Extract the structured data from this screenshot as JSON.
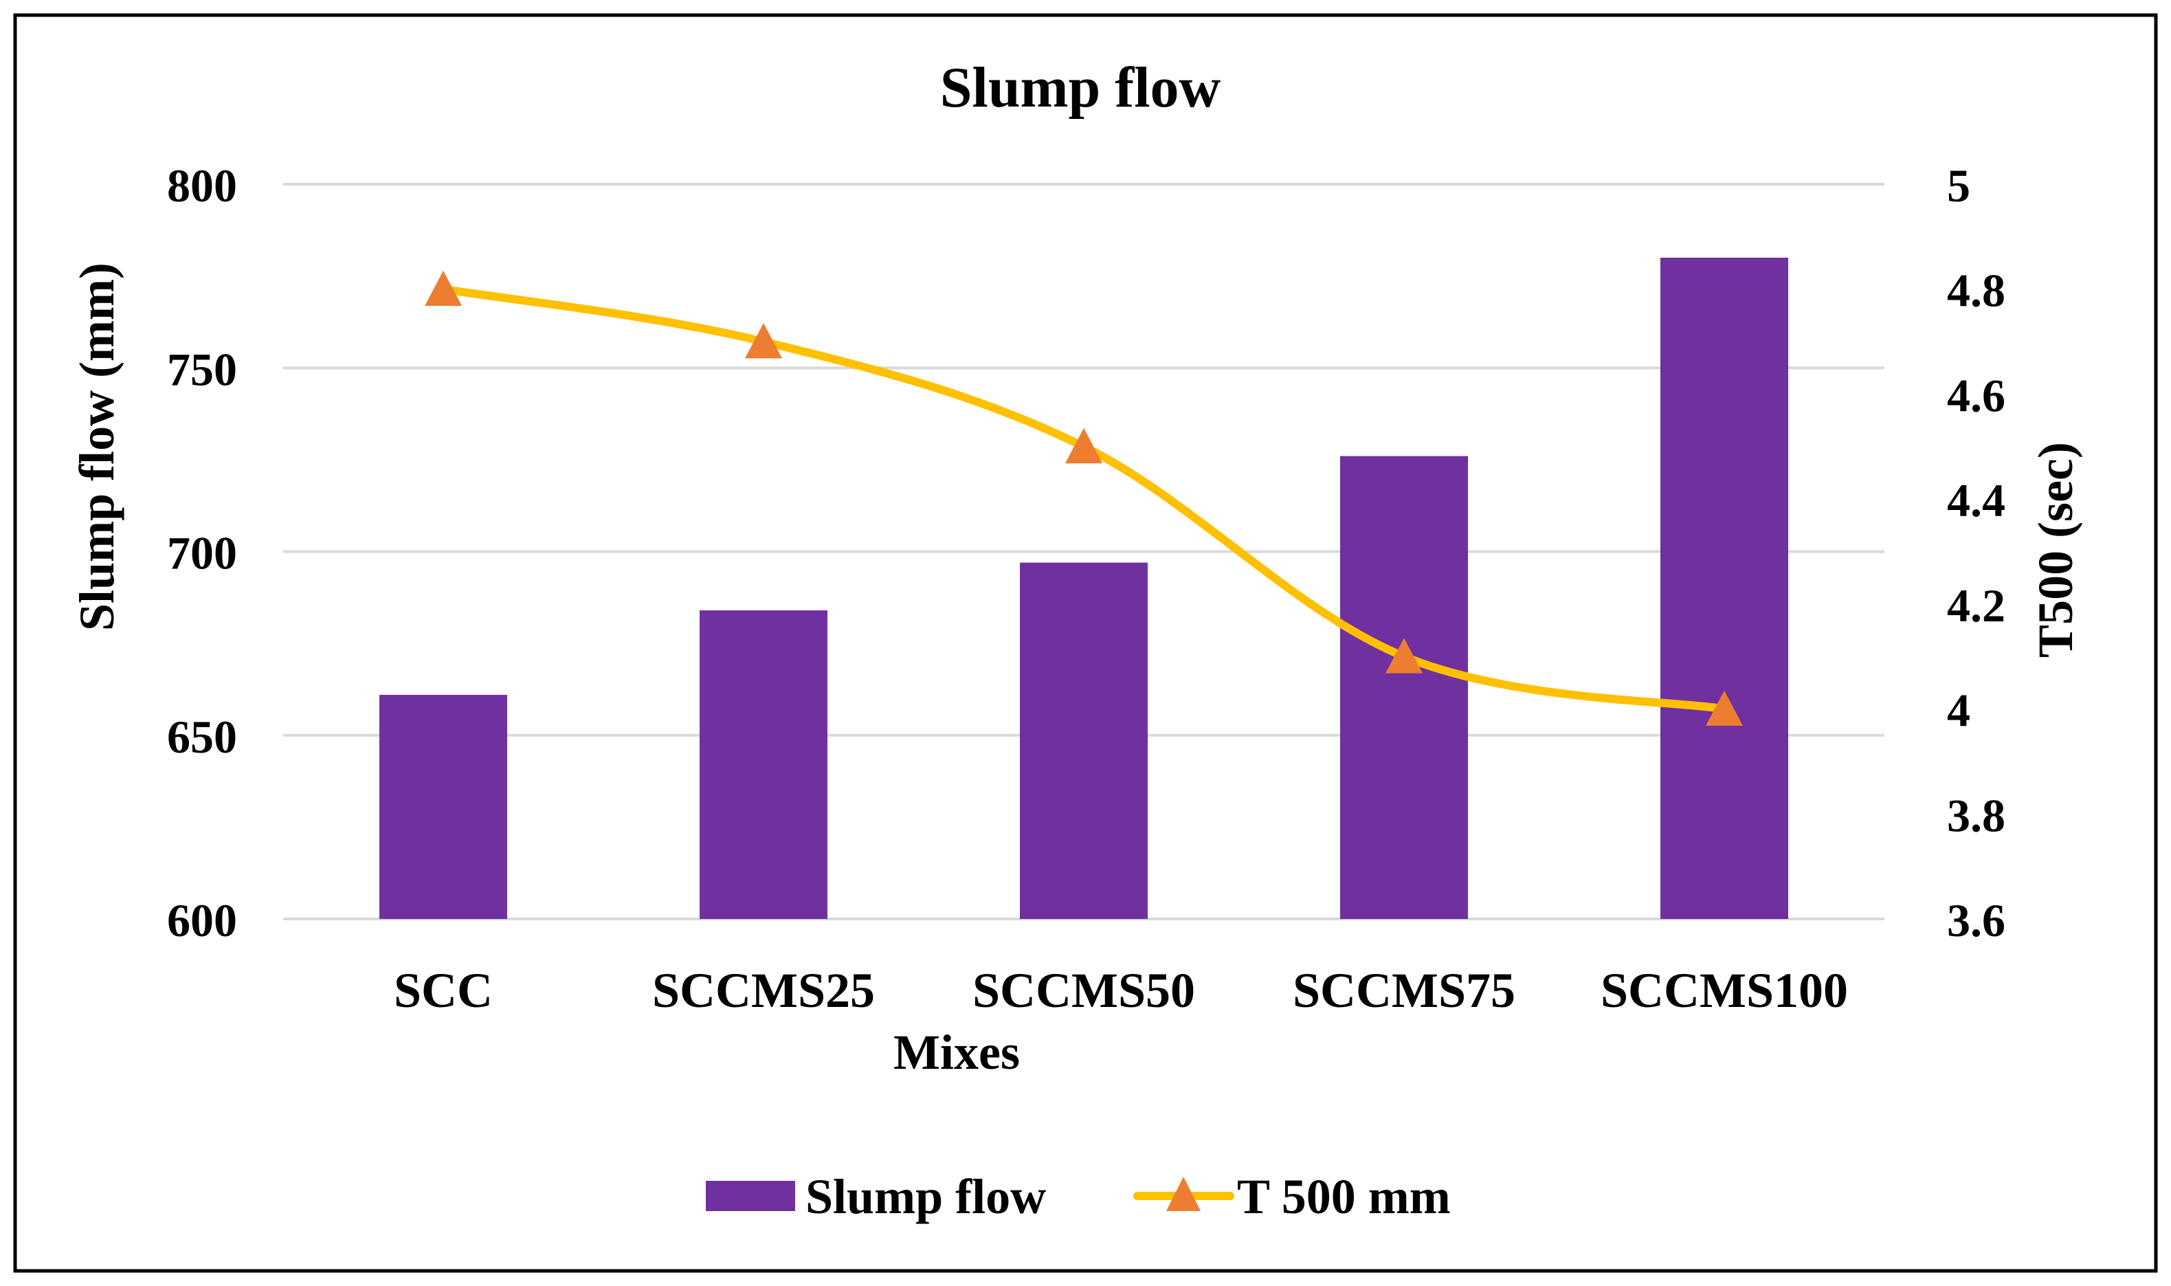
{
  "colors": {
    "bar": "#7030A0",
    "line": "#FFC000",
    "marker": "#ED7D31",
    "grid": "#D9D9D9",
    "frame": "#000000"
  },
  "chart_data": {
    "type": "bar",
    "title": "Slump flow",
    "xlabel": "Mixes",
    "ylabel": "Slump flow (mm)",
    "y2label": "T500 (sec)",
    "categories": [
      "SCC",
      "SCCMS25",
      "SCCMS50",
      "SCCMS75",
      "SCCMS100"
    ],
    "ylim": [
      600,
      800
    ],
    "yticks": [
      600,
      650,
      700,
      750,
      800
    ],
    "y2lim": [
      3.6,
      5.0
    ],
    "y2ticks": [
      "3.6",
      "3.8",
      "4",
      "4.2",
      "4.4",
      "4.6",
      "4.8",
      "5"
    ],
    "grid": true,
    "legend_position": "bottom",
    "series": [
      {
        "name": "Slump flow",
        "type": "bar",
        "axis": "left",
        "values": [
          661,
          684,
          697,
          726,
          780
        ]
      },
      {
        "name": "T 500 mm",
        "type": "line",
        "axis": "right",
        "marker": "triangle",
        "values": [
          4.8,
          4.7,
          4.5,
          4.1,
          4.0
        ]
      }
    ]
  }
}
